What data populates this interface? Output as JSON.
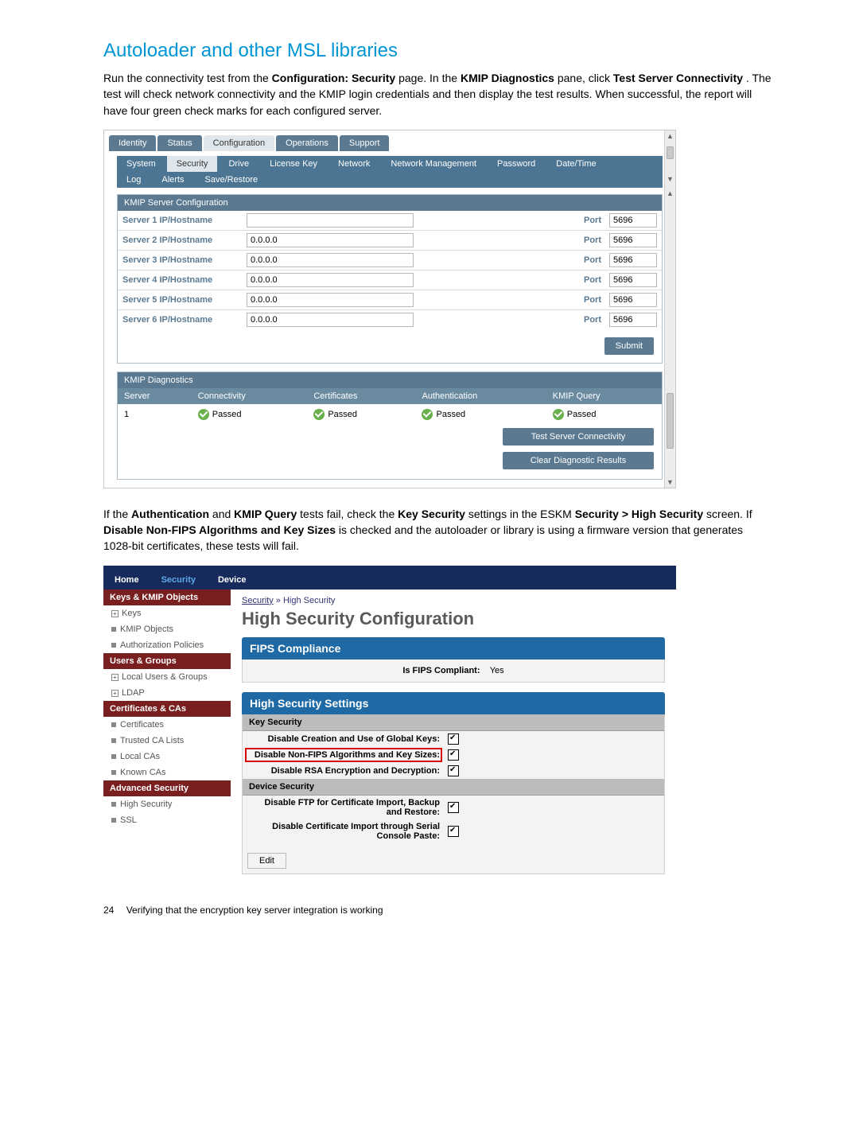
{
  "heading": "Autoloader and other MSL libraries",
  "intro_parts": [
    "Run the connectivity test from the ",
    "Configuration: Security",
    " page. In the ",
    "KMIP Diagnostics",
    " pane, click ",
    "Test Server Connectivity",
    ". The test will check network connectivity and the KMIP login credentials and then display the test results. When successful, the report will have four green check marks for each configured server."
  ],
  "shot1": {
    "maintabs": [
      "Identity",
      "Status",
      "Configuration",
      "Operations",
      "Support"
    ],
    "maintabs_light_index": 2,
    "subtabs_row1": [
      "System",
      "Security",
      "Drive",
      "License Key",
      "Network",
      "Network Management",
      "Password",
      "Date/Time"
    ],
    "subtabs_row1_light_index": 1,
    "subtabs_row2": [
      "Log",
      "Alerts",
      "Save/Restore"
    ],
    "kmip_cfg_header": "KMIP Server Configuration",
    "port_label": "Port",
    "servers": [
      {
        "label": "Server 1 IP/Hostname",
        "ip": "",
        "port": "5696"
      },
      {
        "label": "Server 2 IP/Hostname",
        "ip": "0.0.0.0",
        "port": "5696"
      },
      {
        "label": "Server 3 IP/Hostname",
        "ip": "0.0.0.0",
        "port": "5696"
      },
      {
        "label": "Server 4 IP/Hostname",
        "ip": "0.0.0.0",
        "port": "5696"
      },
      {
        "label": "Server 5 IP/Hostname",
        "ip": "0.0.0.0",
        "port": "5696"
      },
      {
        "label": "Server 6 IP/Hostname",
        "ip": "0.0.0.0",
        "port": "5696"
      }
    ],
    "submit_label": "Submit",
    "diag_header": "KMIP Diagnostics",
    "diag_cols": [
      "Server",
      "Connectivity",
      "Certificates",
      "Authentication",
      "KMIP Query"
    ],
    "diag_row": {
      "server": "1",
      "v": "Passed"
    },
    "test_btn": "Test Server Connectivity",
    "clear_btn": "Clear Diagnostic Results"
  },
  "mid_parts": [
    "If the ",
    "Authentication",
    " and ",
    "KMIP Query",
    " tests fail, check the ",
    "Key Security",
    " settings in the ESKM ",
    "Security > High Security",
    " screen. If ",
    "Disable Non-FIPS Algorithms and Key Sizes",
    " is checked and the autoloader or library is using a firmware version that generates 1028-bit certificates, these tests will fail."
  ],
  "shot2": {
    "toptabs": [
      "Home",
      "Security",
      "Device"
    ],
    "toptabs_active_index": 1,
    "sidebar": [
      {
        "hdr": "Keys & KMIP Objects",
        "items": [
          {
            "t": "Keys",
            "p": "+"
          },
          {
            "t": "KMIP Objects",
            "p": "•"
          },
          {
            "t": "Authorization Policies",
            "p": "•"
          }
        ]
      },
      {
        "hdr": "Users & Groups",
        "items": [
          {
            "t": "Local Users & Groups",
            "p": "+"
          },
          {
            "t": "LDAP",
            "p": "+"
          }
        ]
      },
      {
        "hdr": "Certificates & CAs",
        "items": [
          {
            "t": "Certificates",
            "p": "•"
          },
          {
            "t": "Trusted CA Lists",
            "p": "•"
          },
          {
            "t": "Local CAs",
            "p": "•"
          },
          {
            "t": "Known CAs",
            "p": "•"
          }
        ]
      },
      {
        "hdr": "Advanced Security",
        "items": [
          {
            "t": "High Security",
            "p": "•"
          },
          {
            "t": "SSL",
            "p": "•"
          }
        ]
      }
    ],
    "breadcrumb_a": "Security",
    "breadcrumb_sep": " » ",
    "breadcrumb_b": "High Security",
    "h3": "High Security Configuration",
    "fips_bar": "FIPS Compliance",
    "fips_label": "Is FIPS Compliant:",
    "fips_value": "Yes",
    "hss_bar": "High Security Settings",
    "key_sec_hdr": "Key Security",
    "rows_key": [
      {
        "lbl": "Disable Creation and Use of Global Keys:",
        "red": false
      },
      {
        "lbl": "Disable Non-FIPS Algorithms and Key Sizes:",
        "red": true
      },
      {
        "lbl": "Disable RSA Encryption and Decryption:",
        "red": false
      }
    ],
    "dev_sec_hdr": "Device Security",
    "rows_dev": [
      {
        "lbl": "Disable FTP for Certificate Import, Backup and Restore:"
      },
      {
        "lbl": "Disable Certificate Import through Serial Console Paste:"
      }
    ],
    "edit_label": "Edit"
  },
  "footer": {
    "page": "24",
    "text": "Verifying that the encryption key server integration is working"
  }
}
